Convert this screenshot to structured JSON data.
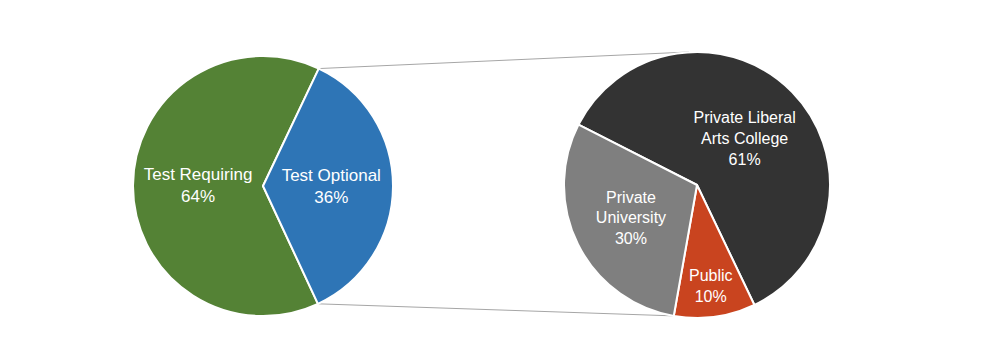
{
  "chart_data": [
    {
      "type": "pie",
      "categories": [
        "Test Requiring",
        "Test Optional"
      ],
      "values": [
        64,
        36
      ],
      "value_labels": [
        "64%",
        "36%"
      ],
      "colors": [
        "#548235",
        "#2E75B6"
      ],
      "data_labels": true
    },
    {
      "type": "pie",
      "categories": [
        "Private Liberal Arts College",
        "Public",
        "Private University"
      ],
      "values": [
        61,
        10,
        30
      ],
      "value_labels": [
        "61%",
        "10%",
        "30%"
      ],
      "colors": [
        "#333333",
        "#C9441F",
        "#7F7F7F"
      ],
      "data_labels": true
    }
  ]
}
